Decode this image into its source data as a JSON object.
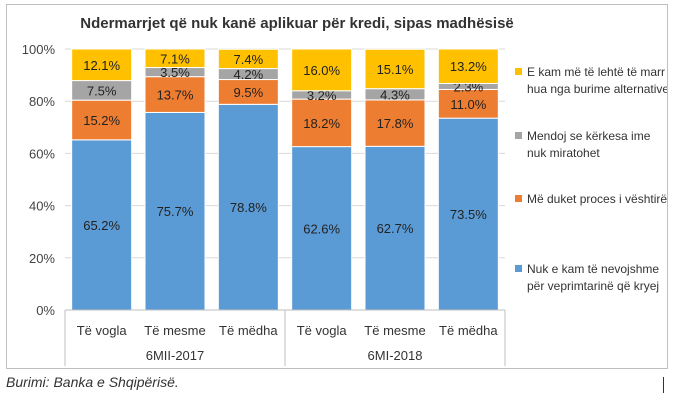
{
  "chart_data": {
    "type": "bar",
    "stacked": true,
    "title": "Ndermarrjet që nuk kanë aplikuar për kredi, sipas madhësisë",
    "ylim": [
      0,
      100
    ],
    "y_ticks": [
      "0%",
      "20%",
      "40%",
      "60%",
      "80%",
      "100%"
    ],
    "groups": [
      {
        "label": "6MII-2017",
        "categories": [
          "Të vogla",
          "Të mesme",
          "Të mëdha"
        ]
      },
      {
        "label": "6MI-2018",
        "categories": [
          "Të vogla",
          "Të mesme",
          "Të mëdha"
        ]
      }
    ],
    "categories": [
      "Të vogla",
      "Të mesme",
      "Të mëdha",
      "Të vogla",
      "Të mesme",
      "Të mëdha"
    ],
    "series": [
      {
        "name": "Nuk e kam të nevojshme për veprimtarinë që kryej",
        "color": "#5B9BD5",
        "values": [
          65.2,
          75.7,
          78.8,
          62.6,
          62.7,
          73.5
        ],
        "labels": [
          "65.2%",
          "75.7%",
          "78.8%",
          "62.6%",
          "62.7%",
          "73.5%"
        ]
      },
      {
        "name": "Më duket proces i vështirë",
        "color": "#ED7D31",
        "values": [
          15.2,
          13.7,
          9.5,
          18.2,
          17.8,
          11.0
        ],
        "labels": [
          "15.2%",
          "13.7%",
          "9.5%",
          "18.2%",
          "17.8%",
          "11.0%"
        ]
      },
      {
        "name": "Mendoj se kërkesa ime nuk miratohet",
        "color": "#A5A5A5",
        "values": [
          7.5,
          3.5,
          4.2,
          3.2,
          4.3,
          2.3
        ],
        "labels": [
          "7.5%",
          "3.5%",
          "4.2%",
          "3.2%",
          "4.3%",
          "2.3%"
        ]
      },
      {
        "name": "E kam më të lehtë të marr hua nga burime alternative",
        "color": "#FFC000",
        "values": [
          12.1,
          7.1,
          7.4,
          16.0,
          15.1,
          13.2
        ],
        "labels": [
          "12.1%",
          "7.1%",
          "7.4%",
          "16.0%",
          "15.1%",
          "13.2%"
        ]
      }
    ],
    "legend": [
      {
        "lines": [
          "E kam më të lehtë të marr",
          "hua nga burime alternative"
        ],
        "color": "#FFC000"
      },
      {
        "lines": [
          "Mendoj se kërkesa ime",
          "nuk miratohet"
        ],
        "color": "#A5A5A5"
      },
      {
        "lines": [
          "Më duket proces i vështirë"
        ],
        "color": "#ED7D31"
      },
      {
        "lines": [
          "Nuk e kam të nevojshme",
          "për veprimtarinë që kryej"
        ],
        "color": "#5B9BD5"
      }
    ],
    "legend_position": "right",
    "grid": true
  },
  "source": "Burimi: Banka e Shqipërisë."
}
